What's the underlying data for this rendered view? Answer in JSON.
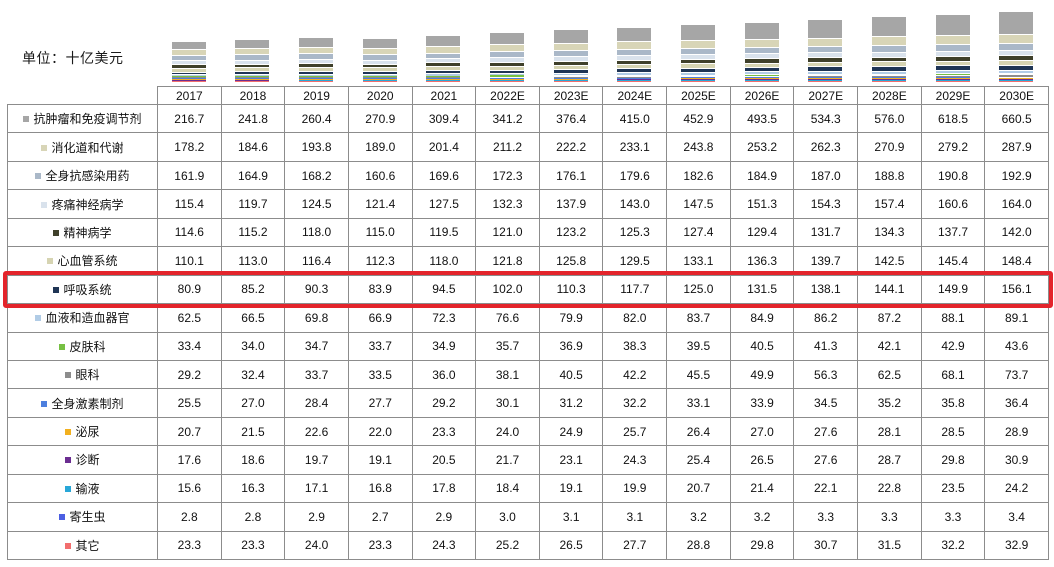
{
  "unit_label": "单位：十亿美元",
  "highlight": {
    "row": "呼吸系统",
    "color": "#e3242b"
  },
  "chart_data": {
    "type": "bar",
    "stacked": true,
    "title": "",
    "xlabel": "",
    "ylabel": "单位：十亿美元",
    "legend_position": "table-left-column",
    "x": [
      "2017",
      "2018",
      "2019",
      "2020",
      "2021",
      "2022E",
      "2023E",
      "2024E",
      "2025E",
      "2026E",
      "2027E",
      "2028E",
      "2029E",
      "2030E"
    ],
    "series": [
      {
        "name": "抗肿瘤和免疫调节剂",
        "color": "#a6a6a6",
        "values": [
          216.7,
          241.8,
          260.4,
          270.9,
          309.4,
          341.2,
          376.4,
          415.0,
          452.9,
          493.5,
          534.3,
          576.0,
          618.5,
          660.5
        ]
      },
      {
        "name": "消化道和代谢",
        "color": "#d8d5b7",
        "values": [
          178.2,
          184.6,
          193.8,
          189.0,
          201.4,
          211.2,
          222.2,
          233.1,
          243.8,
          253.2,
          262.3,
          270.9,
          279.2,
          287.9
        ]
      },
      {
        "name": "全身抗感染用药",
        "color": "#aab8c8",
        "values": [
          161.9,
          164.9,
          168.2,
          160.6,
          169.6,
          172.3,
          176.1,
          179.6,
          182.6,
          184.9,
          187.0,
          188.8,
          190.8,
          192.9
        ]
      },
      {
        "name": "疼痛神经病学",
        "color": "#d9e2ec",
        "values": [
          115.4,
          119.7,
          124.5,
          121.4,
          127.5,
          132.3,
          137.9,
          143.0,
          147.5,
          151.3,
          154.3,
          157.4,
          160.6,
          164.0
        ]
      },
      {
        "name": "精神病学",
        "color": "#3f402a",
        "values": [
          114.6,
          115.2,
          118.0,
          115.0,
          119.5,
          121.0,
          123.2,
          125.3,
          127.4,
          129.4,
          131.7,
          134.3,
          137.7,
          142.0
        ]
      },
      {
        "name": "心血管系统",
        "color": "#d6d4b2",
        "values": [
          110.1,
          113.0,
          116.4,
          112.3,
          118.0,
          121.8,
          125.8,
          129.5,
          133.1,
          136.3,
          139.7,
          142.5,
          145.4,
          148.4
        ]
      },
      {
        "name": "呼吸系统",
        "color": "#1f3555",
        "values": [
          80.9,
          85.2,
          90.3,
          83.9,
          94.5,
          102.0,
          110.3,
          117.7,
          125.0,
          131.5,
          138.1,
          144.1,
          149.9,
          156.1
        ]
      },
      {
        "name": "血液和造血器官",
        "color": "#b1cce6",
        "values": [
          62.5,
          66.5,
          69.8,
          66.9,
          72.3,
          76.6,
          79.9,
          82.0,
          83.7,
          84.9,
          86.2,
          87.2,
          88.1,
          89.1
        ]
      },
      {
        "name": "皮肤科",
        "color": "#77c043",
        "values": [
          33.4,
          34.0,
          34.7,
          33.7,
          34.9,
          35.7,
          36.9,
          38.3,
          39.5,
          40.5,
          41.3,
          42.1,
          42.9,
          43.6
        ]
      },
      {
        "name": "眼科",
        "color": "#8c8c8c",
        "values": [
          29.2,
          32.4,
          33.7,
          33.5,
          36.0,
          38.1,
          40.5,
          42.2,
          45.5,
          49.9,
          56.3,
          62.5,
          68.1,
          73.7
        ]
      },
      {
        "name": "全身激素制剂",
        "color": "#4d7fde",
        "values": [
          25.5,
          27.0,
          28.4,
          27.7,
          29.2,
          30.1,
          31.2,
          32.2,
          33.1,
          33.9,
          34.5,
          35.2,
          35.8,
          36.4
        ]
      },
      {
        "name": "泌尿",
        "color": "#f2b01e",
        "values": [
          20.7,
          21.5,
          22.6,
          22.0,
          23.3,
          24.0,
          24.9,
          25.7,
          26.4,
          27.0,
          27.6,
          28.1,
          28.5,
          28.9
        ]
      },
      {
        "name": "诊断",
        "color": "#6b2d91",
        "values": [
          17.6,
          18.6,
          19.7,
          19.1,
          20.5,
          21.7,
          23.1,
          24.3,
          25.4,
          26.5,
          27.6,
          28.7,
          29.8,
          30.9
        ]
      },
      {
        "name": "输液",
        "color": "#28a7d8",
        "values": [
          15.6,
          16.3,
          17.1,
          16.8,
          17.8,
          18.4,
          19.1,
          19.9,
          20.7,
          21.4,
          22.1,
          22.8,
          23.5,
          24.2
        ]
      },
      {
        "name": "寄生虫",
        "color": "#4c5fe2",
        "values": [
          2.8,
          2.8,
          2.9,
          2.7,
          2.9,
          3.0,
          3.1,
          3.1,
          3.2,
          3.2,
          3.3,
          3.3,
          3.3,
          3.4
        ]
      },
      {
        "name": "其它",
        "color": "#f26e6e",
        "values": [
          23.3,
          23.3,
          24.0,
          23.3,
          24.3,
          25.2,
          26.5,
          27.7,
          28.8,
          29.8,
          30.7,
          31.5,
          32.2,
          32.9
        ]
      }
    ]
  }
}
